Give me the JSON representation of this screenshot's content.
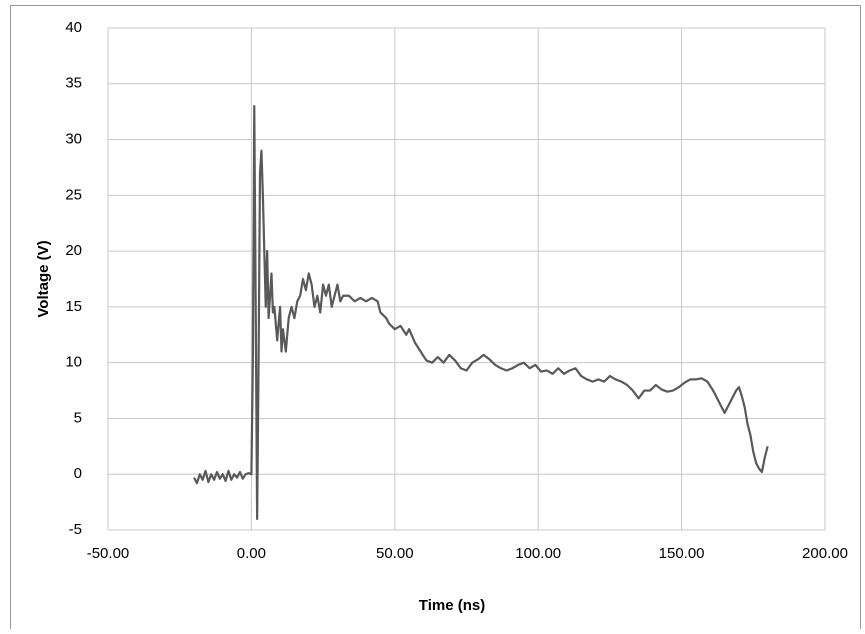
{
  "chart_data": {
    "type": "line",
    "xlabel": "Time (ns)",
    "ylabel": "Voltage (V)",
    "x": [
      -20,
      -19,
      -18,
      -17,
      -16,
      -15,
      -14,
      -13,
      -12,
      -11,
      -10,
      -9,
      -8,
      -7,
      -6,
      -5,
      -4,
      -3,
      -2,
      -1,
      0,
      0.5,
      1,
      1.5,
      2,
      2.5,
      3,
      3.5,
      4,
      5,
      5.5,
      6,
      7,
      7.5,
      8,
      9,
      10,
      10.5,
      11,
      12,
      13,
      14,
      15,
      16,
      17,
      18,
      19,
      20,
      21,
      22,
      23,
      24,
      25,
      26,
      27,
      28,
      29,
      30,
      31,
      32,
      34,
      36,
      38,
      40,
      42,
      44,
      45,
      47,
      48,
      50,
      52,
      54,
      55,
      57,
      59,
      61,
      63,
      65,
      67,
      69,
      71,
      73,
      75,
      77,
      79,
      81,
      83,
      85,
      87,
      89,
      91,
      93,
      95,
      97,
      99,
      101,
      103,
      105,
      107,
      109,
      111,
      113,
      115,
      117,
      119,
      121,
      123,
      125,
      127,
      129,
      131,
      133,
      135,
      137,
      139,
      141,
      143,
      145,
      147,
      149,
      151,
      153,
      155,
      157,
      159,
      161,
      163,
      165,
      167,
      169,
      170,
      171,
      172,
      173,
      174,
      175,
      176,
      177,
      178,
      179,
      180
    ],
    "series": [
      {
        "name": "Voltage",
        "color": "#595959",
        "values": [
          -0.3,
          -0.8,
          0,
          -0.5,
          0.3,
          -0.7,
          0,
          -0.5,
          0.2,
          -0.4,
          0,
          -0.6,
          0.3,
          -0.5,
          0,
          -0.3,
          0.2,
          -0.4,
          0,
          0.1,
          0,
          10,
          33,
          15,
          -4,
          10,
          27,
          29,
          25,
          15,
          20,
          14,
          18,
          14.5,
          15,
          12,
          15,
          11,
          13,
          11,
          14,
          15,
          14,
          15.5,
          16,
          17.5,
          16.5,
          18,
          17,
          15,
          16,
          14.5,
          17,
          16,
          17,
          15,
          16,
          17,
          15.5,
          16,
          16,
          15.5,
          15.8,
          15.5,
          15.8,
          15.5,
          14.5,
          14,
          13.5,
          13,
          13.3,
          12.5,
          13,
          11.8,
          11,
          10.2,
          10,
          10.5,
          10,
          10.7,
          10.2,
          9.5,
          9.3,
          10,
          10.3,
          10.7,
          10.3,
          9.8,
          9.5,
          9.3,
          9.5,
          9.8,
          10,
          9.5,
          9.8,
          9.2,
          9.3,
          9,
          9.5,
          9,
          9.3,
          9.5,
          8.8,
          8.5,
          8.3,
          8.5,
          8.3,
          8.8,
          8.5,
          8.3,
          8,
          7.5,
          6.8,
          7.5,
          7.5,
          8,
          7.6,
          7.4,
          7.5,
          7.8,
          8.2,
          8.5,
          8.5,
          8.6,
          8.3,
          7.5,
          6.5,
          5.5,
          6.5,
          7.5,
          7.8,
          7,
          6,
          4.5,
          3.5,
          2,
          1,
          0.5,
          0.2,
          1.5,
          2.5
        ]
      }
    ],
    "xlim": [
      -50,
      200
    ],
    "xticks": [
      {
        "value": -50,
        "label": "-50.00"
      },
      {
        "value": 0,
        "label": "0.00"
      },
      {
        "value": 50,
        "label": "50.00"
      },
      {
        "value": 100,
        "label": "100.00"
      },
      {
        "value": 150,
        "label": "150.00"
      },
      {
        "value": 200,
        "label": "200.00"
      }
    ],
    "ylim": [
      -5,
      40
    ],
    "yticks": [
      -5,
      0,
      5,
      10,
      15,
      20,
      25,
      30,
      35,
      40
    ],
    "grid": true
  }
}
